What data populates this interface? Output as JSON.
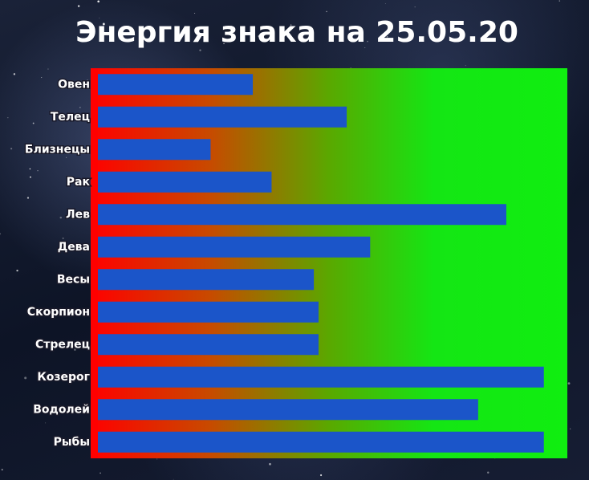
{
  "chart_data": {
    "type": "barh",
    "title": "Энергия знака на 25.05.20",
    "categories": [
      "Овен",
      "Телец",
      "Близнецы",
      "Рак",
      "Лев",
      "Дева",
      "Весы",
      "Скорпион",
      "Стрелец",
      "Козерог",
      "Водолей",
      "Рыбы"
    ],
    "values": [
      33,
      53,
      24,
      37,
      87,
      58,
      46,
      47,
      47,
      95,
      81,
      95
    ],
    "color": "#1b55c9",
    "xlim": [
      0,
      100
    ]
  }
}
